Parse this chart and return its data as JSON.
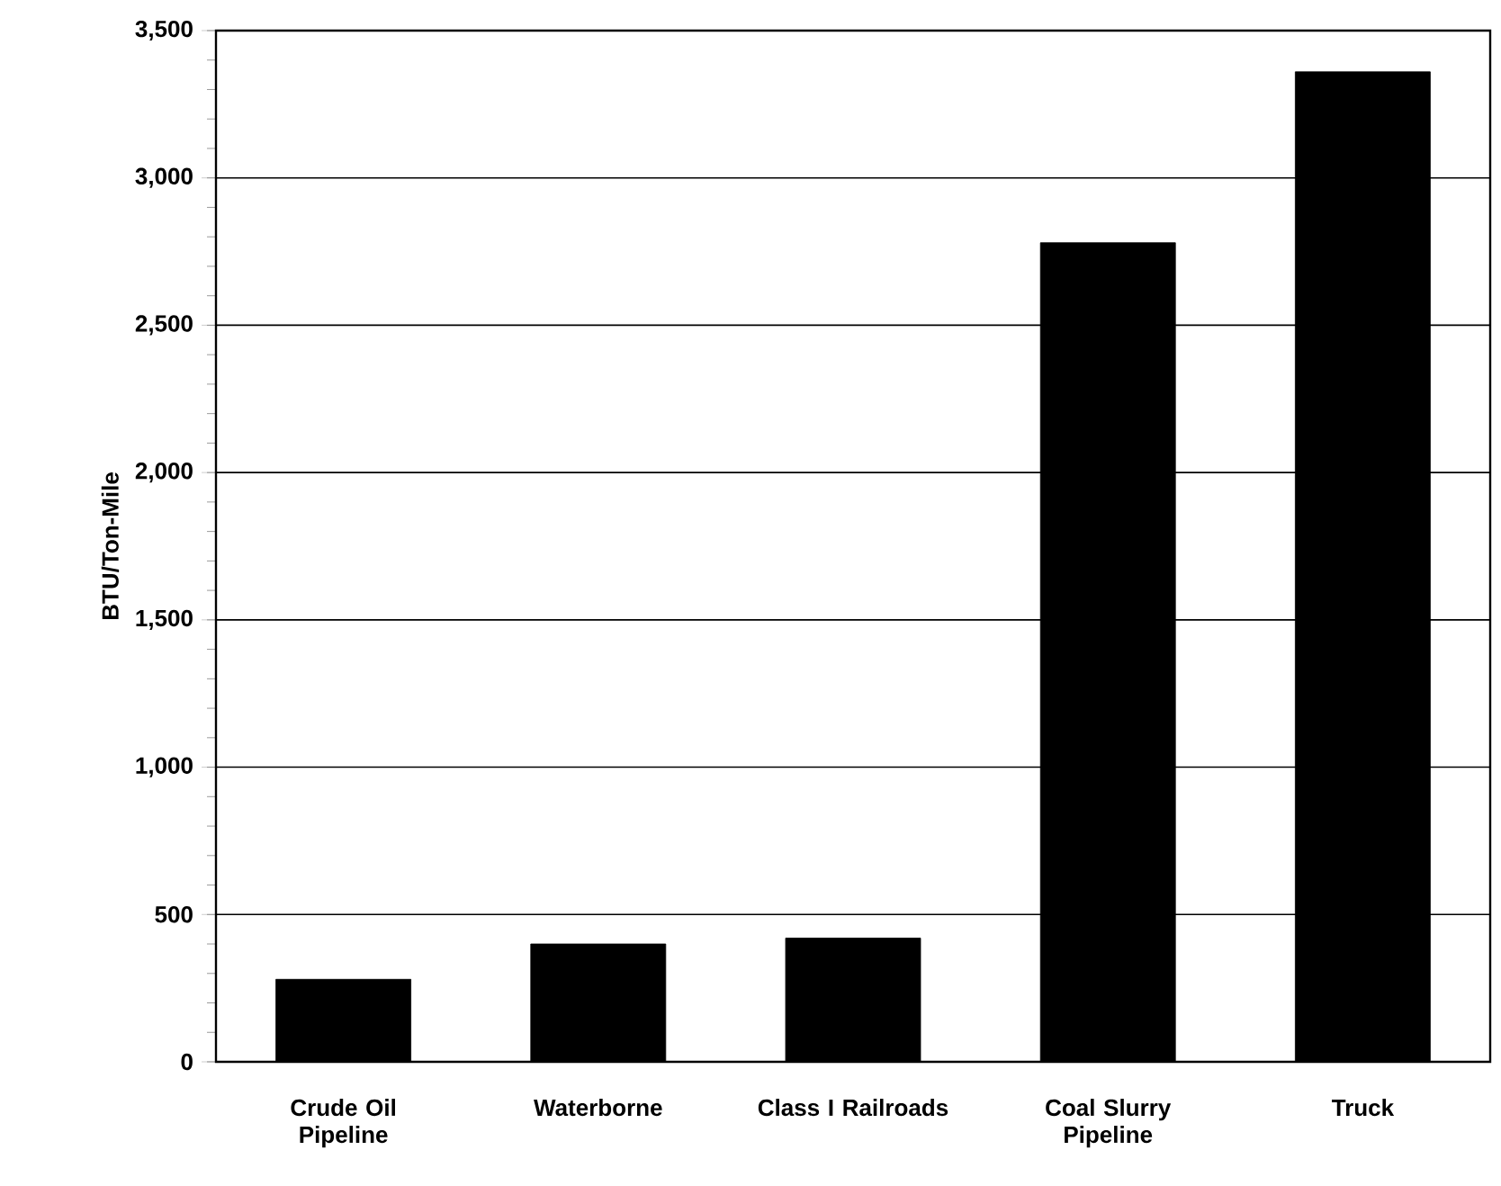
{
  "chart_data": {
    "type": "bar",
    "ylabel": "BTU/Ton-Mile",
    "categories": [
      "Crude Oil Pipeline",
      "Waterborne",
      "Class I Railroads",
      "Coal Slurry Pipeline",
      "Truck"
    ],
    "values": [
      280,
      400,
      420,
      2780,
      3360
    ],
    "color": "#000000",
    "ylim": [
      0,
      3500
    ],
    "yticks": [
      {
        "value": 0,
        "label": "0"
      },
      {
        "value": 500,
        "label": "500"
      },
      {
        "value": 1000,
        "label": "1,000"
      },
      {
        "value": 1500,
        "label": "1,500"
      },
      {
        "value": 2000,
        "label": "2,000"
      },
      {
        "value": 2500,
        "label": "2,500"
      },
      {
        "value": 3000,
        "label": "3,000"
      },
      {
        "value": 3500,
        "label": "3,500"
      }
    ],
    "grid": "y"
  }
}
